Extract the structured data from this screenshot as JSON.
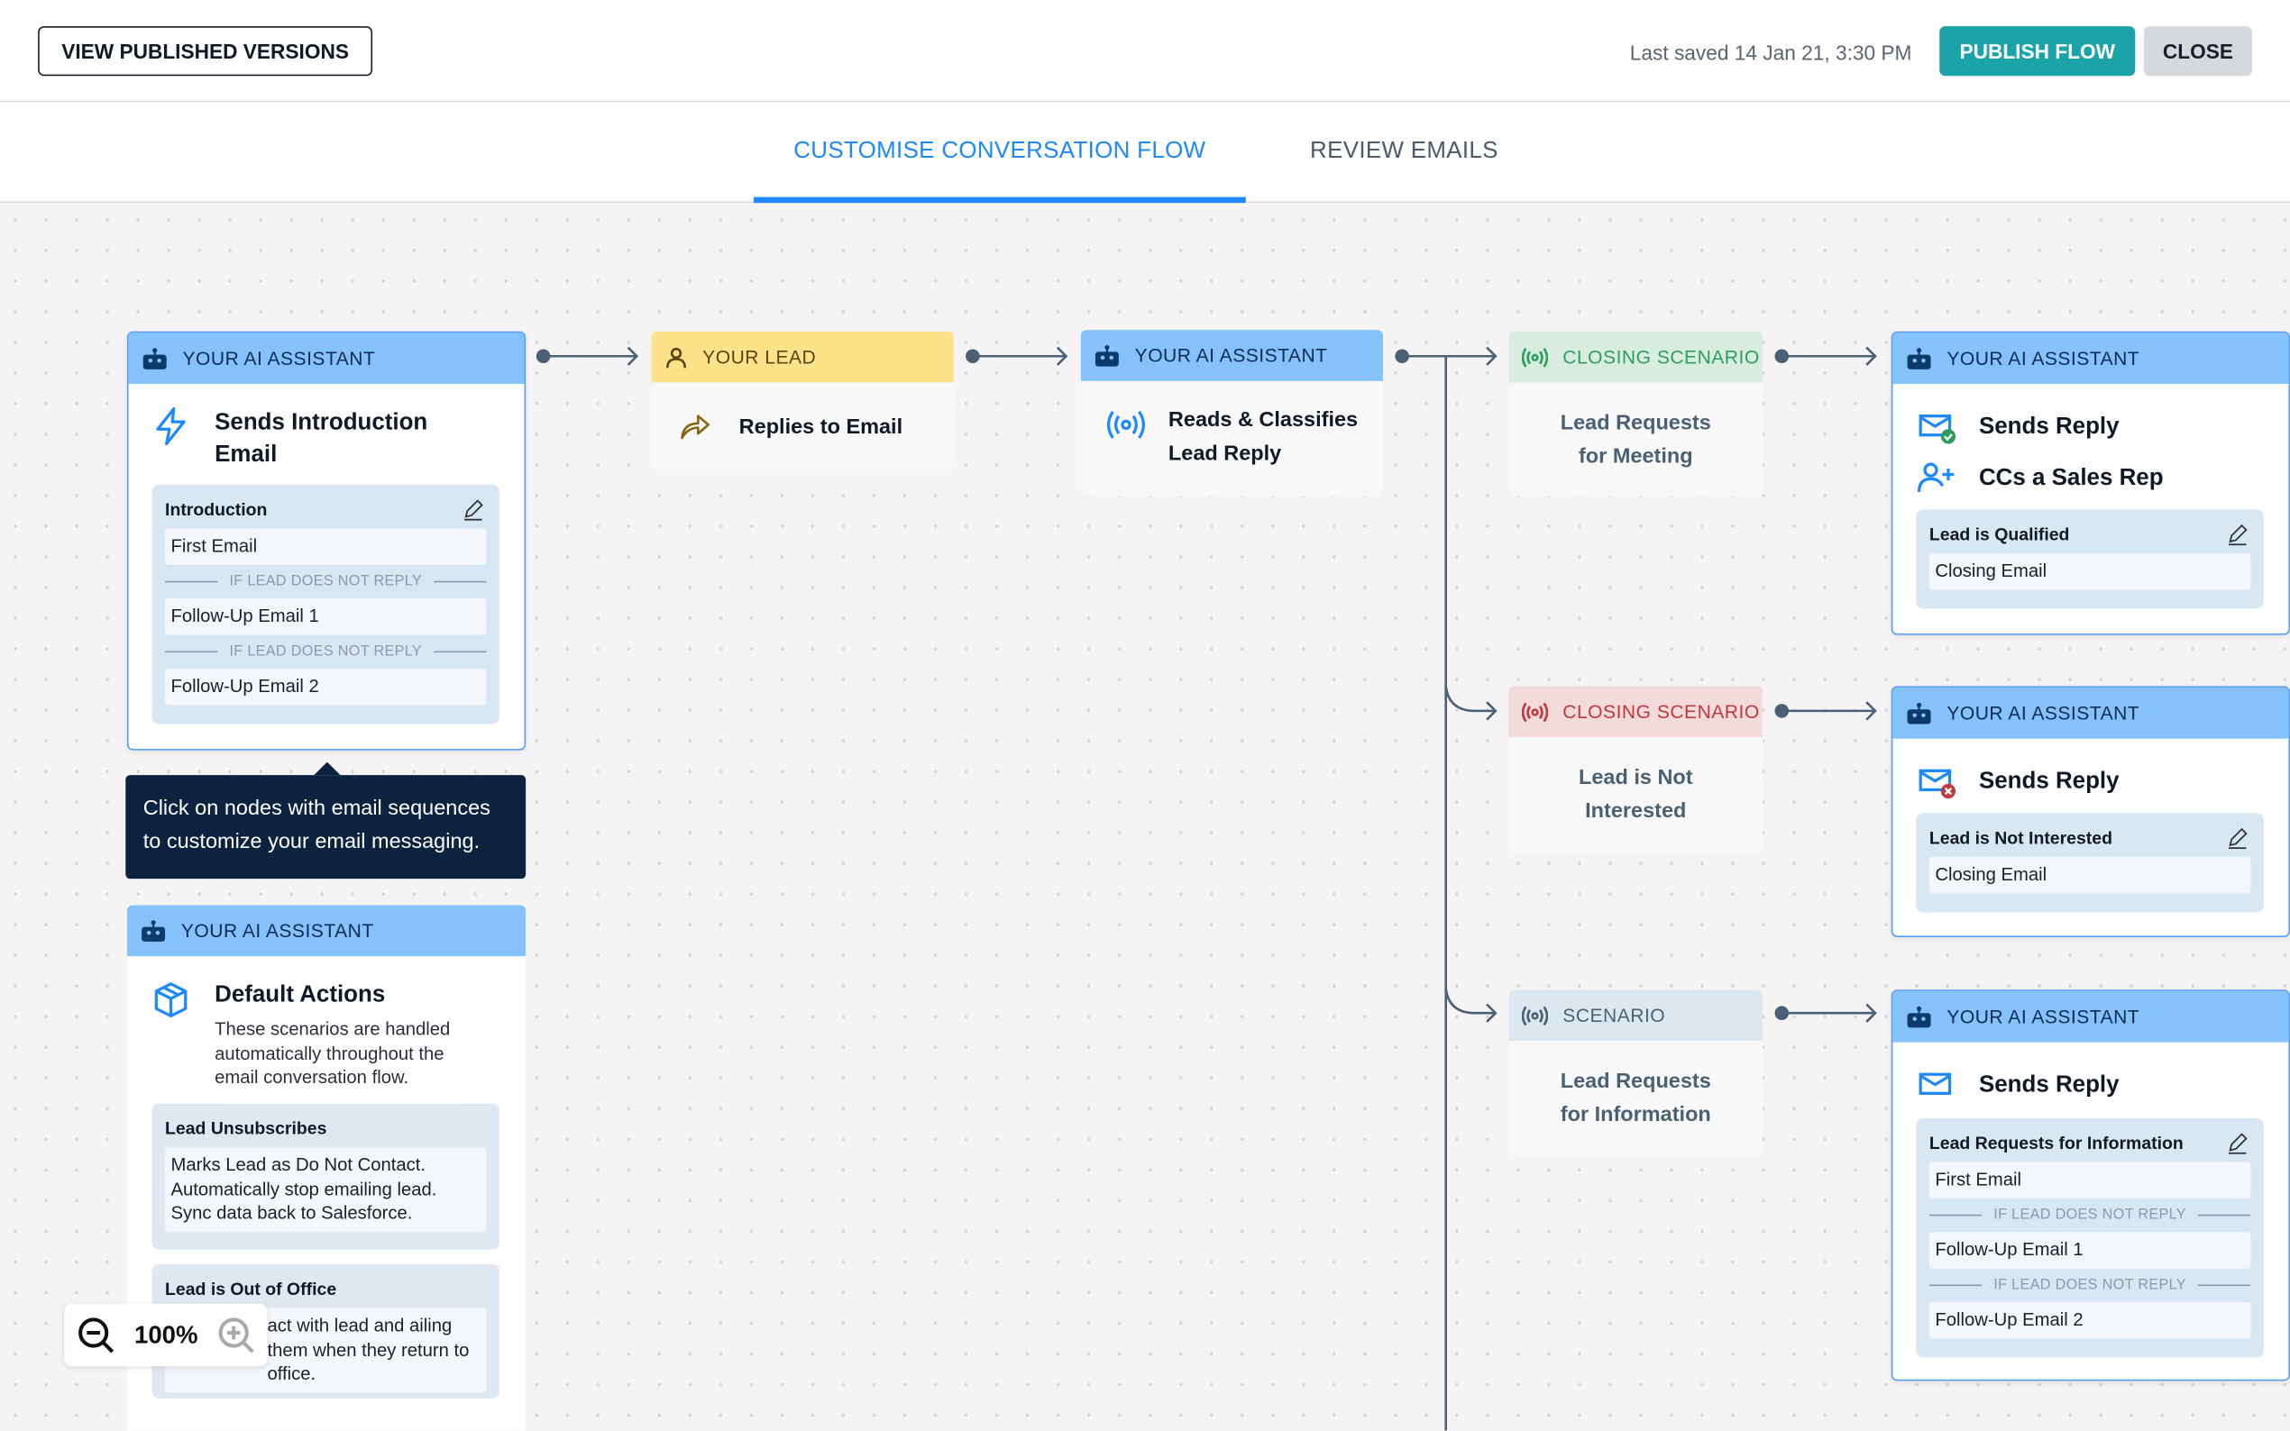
{
  "header": {
    "view_versions_label": "VIEW PUBLISHED VERSIONS",
    "last_saved": "Last saved 14 Jan 21, 3:30 PM",
    "publish_label": "PUBLISH FLOW",
    "close_label": "CLOSE"
  },
  "tabs": [
    {
      "label": "CUSTOMISE CONVERSATION FLOW",
      "active": true
    },
    {
      "label": "REVIEW EMAILS",
      "active": false
    }
  ],
  "colors": {
    "accent": "#1e88ff",
    "publish": "#1aa3a8",
    "ai_header": "#85c2fb",
    "lead_header": "#fde28a",
    "tooltip": "#0c2340"
  },
  "nodes": {
    "intro": {
      "header": "YOUR AI ASSISTANT",
      "title": "Sends Introduction Email",
      "icon": "lightning-icon",
      "sequence_title": "Introduction",
      "emails": [
        "First Email",
        "Follow-Up Email 1",
        "Follow-Up Email 2"
      ],
      "separator": "IF LEAD DOES NOT REPLY"
    },
    "tooltip": "Click on nodes with email sequences to customize your email messaging.",
    "lead": {
      "header": "YOUR LEAD",
      "title": "Replies to Email",
      "icon": "reply-arrow-icon"
    },
    "classify": {
      "header": "YOUR AI ASSISTANT",
      "title_line1": "Reads & Classifies",
      "title_line2": "Lead Reply",
      "icon": "broadcast-icon"
    },
    "scenario_meeting": {
      "header": "CLOSING SCENARIO",
      "line1": "Lead Requests",
      "line2": "for Meeting"
    },
    "scenario_not_interested": {
      "header": "CLOSING SCENARIO",
      "line1": "Lead is Not",
      "line2": "Interested"
    },
    "scenario_info": {
      "header": "SCENARIO",
      "line1": "Lead Requests",
      "line2": "for Information"
    },
    "reply_qualified": {
      "header": "YOUR AI ASSISTANT",
      "title": "Sends Reply",
      "title2": "CCs a Sales Rep",
      "sequence_title": "Lead is Qualified",
      "emails": [
        "Closing Email"
      ]
    },
    "reply_not_interested": {
      "header": "YOUR AI ASSISTANT",
      "title": "Sends Reply",
      "sequence_title": "Lead is Not Interested",
      "emails": [
        "Closing Email"
      ]
    },
    "reply_info": {
      "header": "YOUR AI ASSISTANT",
      "title": "Sends Reply",
      "sequence_title": "Lead Requests for Information",
      "emails": [
        "First Email",
        "Follow-Up Email 1",
        "Follow-Up Email 2"
      ],
      "separator": "IF LEAD DOES NOT REPLY"
    },
    "defaults": {
      "header": "YOUR AI ASSISTANT",
      "title": "Default Actions",
      "description": "These scenarios are handled automatically throughout the email conversation flow.",
      "items": [
        {
          "title": "Lead Unsubscribes",
          "text": "Marks Lead as Do Not Contact. Automatically stop emailing lead. Sync data back to Salesforce."
        },
        {
          "title": "Lead is Out of Office",
          "text": "act with lead and ailing them when they return to office."
        }
      ]
    }
  },
  "zoom": {
    "level": "100%"
  }
}
